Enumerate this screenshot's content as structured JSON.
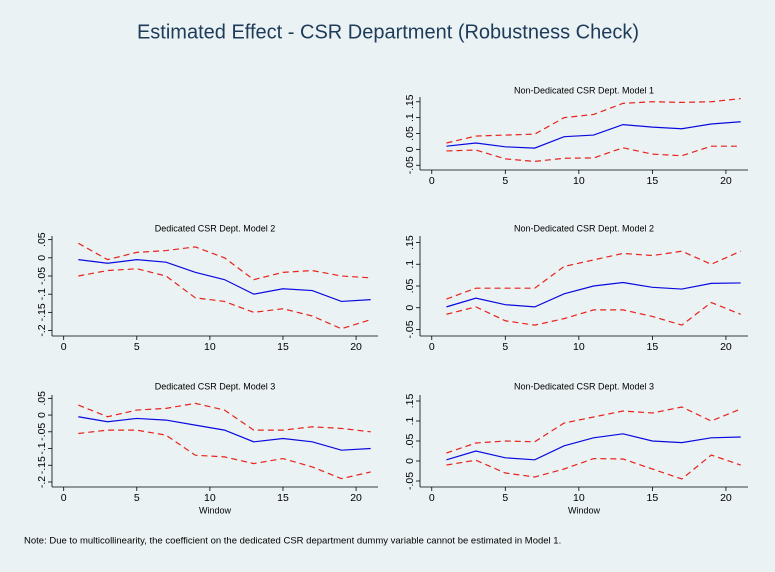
{
  "title": "Estimated Effect - CSR Department (Robustness Check)",
  "note": "Note: Due to multicollinearity, the coefficient on the dedicated CSR department dummy variable cannot be estimated in Model 1.",
  "chart_data": [
    {
      "type": "line",
      "title": "Non-Dedicated CSR Dept. Model 1",
      "x": [
        1,
        3,
        5,
        7,
        9,
        11,
        13,
        15,
        17,
        19,
        21
      ],
      "xlim": [
        -0.8,
        21.5
      ],
      "xticks": [
        0,
        5,
        10,
        15,
        20
      ],
      "ylim": [
        -0.065,
        0.165
      ],
      "yticks": [
        {
          "value": -0.05,
          "label": "-.05"
        },
        0,
        {
          "value": 0.05,
          "label": ".05"
        },
        {
          "value": 0.1,
          "label": ".1"
        },
        {
          "value": 0.15,
          "label": ".15"
        }
      ],
      "series": [
        {
          "color": "#0a0ae0",
          "style": "solid",
          "values": [
            0.01,
            0.02,
            0.008,
            0.004,
            0.04,
            0.045,
            0.078,
            0.07,
            0.065,
            0.08,
            0.087
          ]
        },
        {
          "color": "#e8231c",
          "style": "dashed",
          "values": [
            0.02,
            0.042,
            0.045,
            0.048,
            0.1,
            0.11,
            0.145,
            0.15,
            0.148,
            0.15,
            0.16
          ]
        },
        {
          "color": "#e8231c",
          "style": "dashed",
          "values": [
            -0.005,
            -0.002,
            -0.03,
            -0.038,
            -0.028,
            -0.027,
            0.005,
            -0.015,
            -0.02,
            0.01,
            0.01
          ]
        }
      ]
    },
    {
      "type": "line",
      "title": "Dedicated CSR Dept. Model 2",
      "x": [
        1,
        3,
        5,
        7,
        9,
        11,
        13,
        15,
        17,
        19,
        21
      ],
      "xlim": [
        -0.8,
        21.5
      ],
      "xticks": [
        0,
        5,
        10,
        15,
        20
      ],
      "ylim": [
        -0.215,
        0.06
      ],
      "yticks": [
        {
          "value": -0.2,
          "label": "-.2"
        },
        {
          "value": -0.15,
          "label": "-.15"
        },
        {
          "value": -0.1,
          "label": "-.1"
        },
        {
          "value": -0.05,
          "label": "-.05"
        },
        0,
        {
          "value": 0.05,
          "label": ".05"
        }
      ],
      "series": [
        {
          "color": "#0a0ae0",
          "style": "solid",
          "values": [
            -0.005,
            -0.015,
            -0.005,
            -0.012,
            -0.04,
            -0.06,
            -0.1,
            -0.085,
            -0.09,
            -0.12,
            -0.115
          ]
        },
        {
          "color": "#e8231c",
          "style": "dashed",
          "values": [
            0.04,
            -0.005,
            0.015,
            0.02,
            0.03,
            0,
            -0.06,
            -0.04,
            -0.035,
            -0.05,
            -0.055
          ]
        },
        {
          "color": "#e8231c",
          "style": "dashed",
          "values": [
            -0.05,
            -0.035,
            -0.03,
            -0.05,
            -0.11,
            -0.12,
            -0.15,
            -0.14,
            -0.16,
            -0.195,
            -0.17
          ]
        }
      ]
    },
    {
      "type": "line",
      "title": "Non-Dedicated CSR Dept. Model 2",
      "x": [
        1,
        3,
        5,
        7,
        9,
        11,
        13,
        15,
        17,
        19,
        21
      ],
      "xlim": [
        -0.8,
        21.5
      ],
      "xticks": [
        0,
        5,
        10,
        15,
        20
      ],
      "ylim": [
        -0.065,
        0.165
      ],
      "yticks": [
        {
          "value": -0.05,
          "label": "-.05"
        },
        0,
        {
          "value": 0.05,
          "label": ".05"
        },
        {
          "value": 0.1,
          "label": ".1"
        },
        {
          "value": 0.15,
          "label": ".15"
        }
      ],
      "series": [
        {
          "color": "#0a0ae0",
          "style": "solid",
          "values": [
            0.002,
            0.022,
            0.007,
            0.002,
            0.032,
            0.05,
            0.058,
            0.047,
            0.043,
            0.056,
            0.057
          ]
        },
        {
          "color": "#e8231c",
          "style": "dashed",
          "values": [
            0.02,
            0.045,
            0.045,
            0.045,
            0.095,
            0.11,
            0.125,
            0.12,
            0.13,
            0.1,
            0.13
          ]
        },
        {
          "color": "#e8231c",
          "style": "dashed",
          "values": [
            -0.015,
            0.002,
            -0.03,
            -0.04,
            -0.025,
            -0.005,
            -0.005,
            -0.02,
            -0.04,
            0.012,
            -0.015
          ]
        }
      ]
    },
    {
      "type": "line",
      "title": "Dedicated CSR Dept. Model 3",
      "xlabel": "Window",
      "x": [
        1,
        3,
        5,
        7,
        9,
        11,
        13,
        15,
        17,
        19,
        21
      ],
      "xlim": [
        -0.8,
        21.5
      ],
      "xticks": [
        0,
        5,
        10,
        15,
        20
      ],
      "ylim": [
        -0.215,
        0.06
      ],
      "yticks": [
        {
          "value": -0.2,
          "label": "-.2"
        },
        {
          "value": -0.15,
          "label": "-.15"
        },
        {
          "value": -0.1,
          "label": "-.1"
        },
        {
          "value": -0.05,
          "label": "-.05"
        },
        0,
        {
          "value": 0.05,
          "label": ".05"
        }
      ],
      "series": [
        {
          "color": "#0a0ae0",
          "style": "solid",
          "values": [
            -0.005,
            -0.02,
            -0.01,
            -0.015,
            -0.03,
            -0.045,
            -0.08,
            -0.07,
            -0.08,
            -0.105,
            -0.1
          ]
        },
        {
          "color": "#e8231c",
          "style": "dashed",
          "values": [
            0.03,
            -0.005,
            0.015,
            0.02,
            0.035,
            0.015,
            -0.045,
            -0.045,
            -0.035,
            -0.04,
            -0.05
          ]
        },
        {
          "color": "#e8231c",
          "style": "dashed",
          "values": [
            -0.055,
            -0.045,
            -0.045,
            -0.06,
            -0.12,
            -0.125,
            -0.145,
            -0.13,
            -0.155,
            -0.19,
            -0.17
          ]
        }
      ]
    },
    {
      "type": "line",
      "title": "Non-Dedicated CSR Dept. Model 3",
      "xlabel": "Window",
      "x": [
        1,
        3,
        5,
        7,
        9,
        11,
        13,
        15,
        17,
        19,
        21
      ],
      "xlim": [
        -0.8,
        21.5
      ],
      "xticks": [
        0,
        5,
        10,
        15,
        20
      ],
      "ylim": [
        -0.065,
        0.165
      ],
      "yticks": [
        {
          "value": -0.05,
          "label": "-.05"
        },
        0,
        {
          "value": 0.05,
          "label": ".05"
        },
        {
          "value": 0.1,
          "label": ".1"
        },
        {
          "value": 0.15,
          "label": ".15"
        }
      ],
      "series": [
        {
          "color": "#0a0ae0",
          "style": "solid",
          "values": [
            0.003,
            0.025,
            0.008,
            0.003,
            0.038,
            0.058,
            0.068,
            0.05,
            0.046,
            0.058,
            0.06
          ]
        },
        {
          "color": "#e8231c",
          "style": "dashed",
          "values": [
            0.02,
            0.045,
            0.05,
            0.048,
            0.095,
            0.11,
            0.125,
            0.12,
            0.135,
            0.1,
            0.13
          ]
        },
        {
          "color": "#e8231c",
          "style": "dashed",
          "values": [
            -0.01,
            0.002,
            -0.03,
            -0.04,
            -0.02,
            0.006,
            0.005,
            -0.02,
            -0.045,
            0.015,
            -0.01
          ]
        }
      ]
    }
  ]
}
